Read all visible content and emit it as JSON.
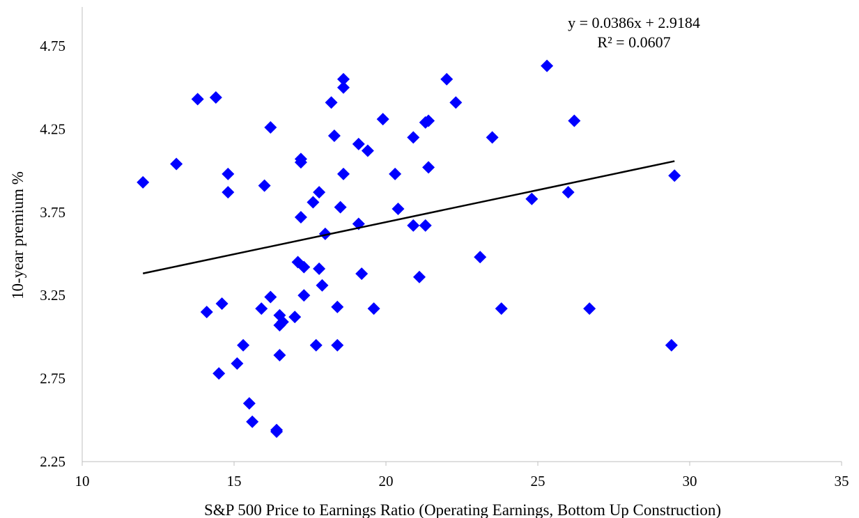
{
  "chart_data": {
    "type": "scatter",
    "title": "",
    "xlabel": "S&P 500 Price to Earnings Ratio (Operating Earnings, Bottom Up Construction)",
    "ylabel": "10-year premium %",
    "xlim": [
      10,
      35
    ],
    "ylim": [
      2.25,
      4.95
    ],
    "x_ticks": [
      10,
      15,
      20,
      25,
      30,
      35
    ],
    "y_ticks": [
      2.25,
      2.75,
      3.25,
      3.75,
      4.25,
      4.75
    ],
    "x_tick_labels": [
      "10",
      "15",
      "20",
      "25",
      "30",
      "35"
    ],
    "y_tick_labels": [
      "2.25",
      "2.75",
      "3.25",
      "3.75",
      "4.25",
      "4.75"
    ],
    "grid": false,
    "legend": "none",
    "marker": "diamond",
    "marker_color": "#0000FF",
    "trendline": {
      "slope": 0.0386,
      "intercept": 2.9184,
      "x_range": [
        12,
        29.5
      ],
      "color": "#000000",
      "equation_label": "y = 0.0386x + 2.9184",
      "r2_label": "R² = 0.0607"
    },
    "series": [
      {
        "points": [
          [
            12.0,
            3.93
          ],
          [
            13.1,
            4.04
          ],
          [
            13.8,
            4.43
          ],
          [
            14.1,
            3.15
          ],
          [
            14.4,
            4.44
          ],
          [
            14.5,
            2.78
          ],
          [
            14.6,
            3.2
          ],
          [
            14.8,
            3.87
          ],
          [
            14.8,
            3.98
          ],
          [
            15.1,
            2.84
          ],
          [
            15.3,
            2.95
          ],
          [
            15.5,
            2.6
          ],
          [
            15.6,
            2.49
          ],
          [
            15.9,
            3.17
          ],
          [
            16.0,
            3.91
          ],
          [
            16.2,
            4.26
          ],
          [
            16.2,
            3.24
          ],
          [
            16.4,
            2.43
          ],
          [
            16.4,
            2.44
          ],
          [
            16.5,
            2.89
          ],
          [
            16.5,
            3.13
          ],
          [
            16.5,
            3.07
          ],
          [
            16.6,
            3.09
          ],
          [
            17.0,
            3.12
          ],
          [
            17.1,
            3.45
          ],
          [
            17.2,
            4.07
          ],
          [
            17.2,
            4.05
          ],
          [
            17.2,
            3.72
          ],
          [
            17.3,
            3.42
          ],
          [
            17.3,
            3.25
          ],
          [
            17.6,
            3.81
          ],
          [
            17.7,
            2.95
          ],
          [
            17.8,
            3.87
          ],
          [
            17.9,
            3.31
          ],
          [
            17.8,
            3.41
          ],
          [
            18.0,
            3.62
          ],
          [
            18.2,
            4.41
          ],
          [
            18.3,
            4.21
          ],
          [
            18.4,
            3.18
          ],
          [
            18.4,
            2.95
          ],
          [
            18.5,
            3.78
          ],
          [
            18.6,
            3.98
          ],
          [
            18.6,
            4.5
          ],
          [
            18.6,
            4.55
          ],
          [
            19.1,
            3.68
          ],
          [
            19.1,
            4.16
          ],
          [
            19.2,
            3.38
          ],
          [
            19.4,
            4.12
          ],
          [
            19.6,
            3.17
          ],
          [
            19.9,
            4.31
          ],
          [
            20.3,
            3.98
          ],
          [
            20.4,
            3.77
          ],
          [
            20.9,
            4.2
          ],
          [
            20.9,
            3.67
          ],
          [
            21.1,
            3.36
          ],
          [
            21.3,
            4.29
          ],
          [
            21.3,
            3.67
          ],
          [
            21.4,
            4.3
          ],
          [
            21.4,
            4.02
          ],
          [
            22.0,
            4.55
          ],
          [
            22.3,
            4.41
          ],
          [
            23.1,
            3.48
          ],
          [
            23.5,
            4.2
          ],
          [
            23.8,
            3.17
          ],
          [
            24.8,
            3.83
          ],
          [
            25.3,
            4.63
          ],
          [
            26.0,
            3.87
          ],
          [
            26.2,
            4.3
          ],
          [
            26.7,
            3.17
          ],
          [
            29.4,
            2.95
          ],
          [
            29.5,
            3.97
          ]
        ]
      }
    ]
  }
}
